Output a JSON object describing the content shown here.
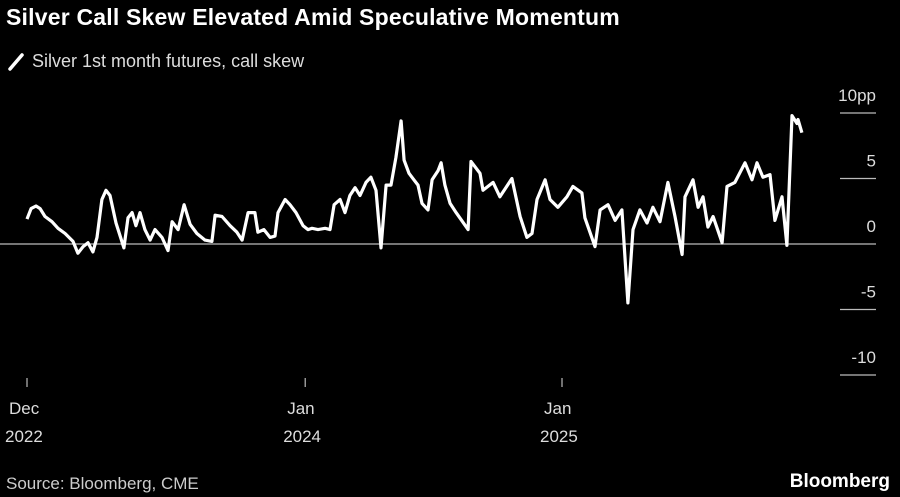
{
  "chart_data": {
    "type": "line",
    "title": "Silver Call Skew Elevated Amid Speculative Momentum",
    "legend": [
      {
        "label": "Silver 1st month futures, call skew",
        "color": "#ffffff"
      }
    ],
    "xlabel": "",
    "ylabel": "",
    "x_units": "months since Dec 2022",
    "x_ticks": [
      {
        "x": 0,
        "label": "Dec",
        "sublabel": "2022"
      },
      {
        "x": 13,
        "label": "Jan",
        "sublabel": "2024"
      },
      {
        "x": 25,
        "label": "Jan",
        "sublabel": "2025"
      }
    ],
    "y_ticks": [
      {
        "y": 10,
        "label": "10pp"
      },
      {
        "y": 5,
        "label": "5"
      },
      {
        "y": 0,
        "label": "0"
      },
      {
        "y": -5,
        "label": "-5"
      },
      {
        "y": -10,
        "label": "-10"
      }
    ],
    "ylim": [
      -10,
      10
    ],
    "xlim": [
      0,
      36.3
    ],
    "legend_position": "top-left",
    "series": [
      {
        "name": "Silver 1st month futures, call skew",
        "points": [
          [
            0,
            1.9
          ],
          [
            0.19,
            2.7
          ],
          [
            0.42,
            2.9
          ],
          [
            0.61,
            2.7
          ],
          [
            0.84,
            2.1
          ],
          [
            1.17,
            1.7
          ],
          [
            1.45,
            1.2
          ],
          [
            1.78,
            0.8
          ],
          [
            2.15,
            0.2
          ],
          [
            2.38,
            -0.7
          ],
          [
            2.62,
            -0.2
          ],
          [
            2.85,
            0.1
          ],
          [
            3.08,
            -0.6
          ],
          [
            3.27,
            0.5
          ],
          [
            3.5,
            3.4
          ],
          [
            3.69,
            4.1
          ],
          [
            3.88,
            3.7
          ],
          [
            4.16,
            1.6
          ],
          [
            4.53,
            -0.3
          ],
          [
            4.72,
            2.0
          ],
          [
            4.91,
            2.4
          ],
          [
            5.09,
            1.4
          ],
          [
            5.28,
            2.4
          ],
          [
            5.51,
            1.1
          ],
          [
            5.75,
            0.3
          ],
          [
            5.98,
            1.1
          ],
          [
            6.31,
            0.5
          ],
          [
            6.59,
            -0.5
          ],
          [
            6.78,
            1.7
          ],
          [
            7.06,
            1.1
          ],
          [
            7.34,
            3.0
          ],
          [
            7.62,
            1.5
          ],
          [
            7.94,
            0.8
          ],
          [
            8.32,
            0.3
          ],
          [
            8.64,
            0.2
          ],
          [
            8.79,
            2.2
          ],
          [
            9.11,
            2.1
          ],
          [
            9.49,
            1.4
          ],
          [
            9.81,
            0.9
          ],
          [
            10.05,
            0.3
          ],
          [
            10.33,
            2.4
          ],
          [
            10.65,
            2.4
          ],
          [
            10.79,
            0.9
          ],
          [
            11.07,
            1.1
          ],
          [
            11.36,
            0.5
          ],
          [
            11.59,
            0.6
          ],
          [
            11.73,
            2.4
          ],
          [
            12.06,
            3.4
          ],
          [
            12.29,
            3.0
          ],
          [
            12.57,
            2.4
          ],
          [
            12.9,
            1.4
          ],
          [
            13.13,
            1.1
          ],
          [
            13.32,
            1.2
          ],
          [
            13.6,
            1.1
          ],
          [
            13.93,
            1.2
          ],
          [
            14.16,
            1.1
          ],
          [
            14.35,
            3.0
          ],
          [
            14.63,
            3.4
          ],
          [
            14.86,
            2.4
          ],
          [
            15.09,
            3.7
          ],
          [
            15.33,
            4.3
          ],
          [
            15.56,
            3.7
          ],
          [
            15.84,
            4.7
          ],
          [
            16.07,
            5.1
          ],
          [
            16.31,
            4.1
          ],
          [
            16.54,
            -0.3
          ],
          [
            16.78,
            4.5
          ],
          [
            17.01,
            4.5
          ],
          [
            17.24,
            6.6
          ],
          [
            17.48,
            9.4
          ],
          [
            17.62,
            6.4
          ],
          [
            17.85,
            5.4
          ],
          [
            18.08,
            4.9
          ],
          [
            18.27,
            4.5
          ],
          [
            18.46,
            3.1
          ],
          [
            18.74,
            2.6
          ],
          [
            18.93,
            4.9
          ],
          [
            19.21,
            5.6
          ],
          [
            19.35,
            6.2
          ],
          [
            19.53,
            4.5
          ],
          [
            19.77,
            3.1
          ],
          [
            20.05,
            2.4
          ],
          [
            20.61,
            1.1
          ],
          [
            20.75,
            6.3
          ],
          [
            21.17,
            5.4
          ],
          [
            21.31,
            4.1
          ],
          [
            21.78,
            4.7
          ],
          [
            22.1,
            3.6
          ],
          [
            22.66,
            5.0
          ],
          [
            23.04,
            2.1
          ],
          [
            23.36,
            0.5
          ],
          [
            23.6,
            0.8
          ],
          [
            23.83,
            3.4
          ],
          [
            24.21,
            4.9
          ],
          [
            24.44,
            3.4
          ],
          [
            24.81,
            2.8
          ],
          [
            25.23,
            3.6
          ],
          [
            25.51,
            4.4
          ],
          [
            25.93,
            3.9
          ],
          [
            26.07,
            2.0
          ],
          [
            26.54,
            -0.2
          ],
          [
            26.78,
            2.6
          ],
          [
            27.15,
            3.0
          ],
          [
            27.48,
            1.8
          ],
          [
            27.8,
            2.6
          ],
          [
            28.08,
            -4.5
          ],
          [
            28.32,
            1.1
          ],
          [
            28.64,
            2.6
          ],
          [
            28.97,
            1.6
          ],
          [
            29.25,
            2.8
          ],
          [
            29.58,
            1.7
          ],
          [
            29.95,
            4.7
          ],
          [
            30.28,
            2.1
          ],
          [
            30.61,
            -0.8
          ],
          [
            30.75,
            3.6
          ],
          [
            31.12,
            4.9
          ],
          [
            31.36,
            2.8
          ],
          [
            31.59,
            3.6
          ],
          [
            31.82,
            1.3
          ],
          [
            32.06,
            2.1
          ],
          [
            32.48,
            0.1
          ],
          [
            32.71,
            4.4
          ],
          [
            33.08,
            4.7
          ],
          [
            33.55,
            6.2
          ],
          [
            33.88,
            4.9
          ],
          [
            34.11,
            6.2
          ],
          [
            34.39,
            5.1
          ],
          [
            34.72,
            5.3
          ],
          [
            34.95,
            1.8
          ],
          [
            35.28,
            3.6
          ],
          [
            35.51,
            -0.1
          ],
          [
            35.75,
            9.8
          ],
          [
            35.98,
            9.2
          ],
          [
            36.03,
            9.5
          ],
          [
            36.21,
            8.5
          ]
        ]
      }
    ]
  },
  "footer": {
    "source": "Source: Bloomberg, CME",
    "brand": "Bloomberg"
  }
}
